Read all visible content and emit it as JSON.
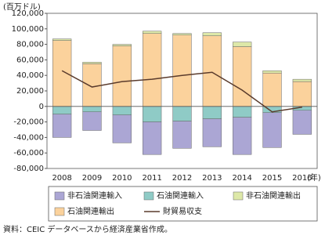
{
  "chart_data": {
    "type": "bar",
    "y_unit_label": "(百万ドル)",
    "x_unit_label": "(年)",
    "categories": [
      "2008",
      "2009",
      "2010",
      "2011",
      "2012",
      "2013",
      "2014",
      "2015",
      "2016"
    ],
    "series": [
      {
        "name": "非石油関連輸入",
        "color": "#aba6d4",
        "values": [
          -30000,
          -24000,
          -36000,
          -42000,
          -35000,
          -36000,
          -48000,
          -45000,
          -31000
        ]
      },
      {
        "name": "石油関連輸入",
        "color": "#8fcbc6",
        "values": [
          -10000,
          -7000,
          -11000,
          -20000,
          -19000,
          -16000,
          -14000,
          -8000,
          -5000
        ]
      },
      {
        "name": "非石油関連輸出",
        "color": "#dde8a8",
        "values": [
          2000,
          2000,
          2000,
          3000,
          2000,
          4000,
          6000,
          3000,
          3000
        ]
      },
      {
        "name": "石油関連輸出",
        "color": "#fbd29c",
        "values": [
          85000,
          55000,
          78000,
          94000,
          92000,
          91000,
          77000,
          43000,
          32000
        ]
      },
      {
        "name": "財貿易収支",
        "type": "line",
        "color": "#5a3b2c",
        "values": [
          46000,
          25000,
          32000,
          35000,
          40000,
          44000,
          21000,
          -7000,
          -1000
        ]
      }
    ],
    "stack_order": [
      3,
      2,
      1,
      0
    ],
    "ylim": [
      -80000,
      120000
    ],
    "yticks": [
      {
        "value": -80000,
        "label": "-80,000"
      },
      {
        "value": -60000,
        "label": "-60,000"
      },
      {
        "value": -40000,
        "label": "-40,000"
      },
      {
        "value": -20000,
        "label": "-20,000"
      },
      0,
      {
        "value": 20000,
        "label": "20,000"
      },
      {
        "value": 40000,
        "label": "40,000"
      },
      {
        "value": 60000,
        "label": "60,000"
      },
      {
        "value": 80000,
        "label": "80,000"
      },
      {
        "value": 100000,
        "label": "100,000"
      },
      {
        "value": 120000,
        "label": "120,000"
      }
    ],
    "grid": false,
    "source": "資料：CEIC データベースから経済産業省作成。"
  }
}
